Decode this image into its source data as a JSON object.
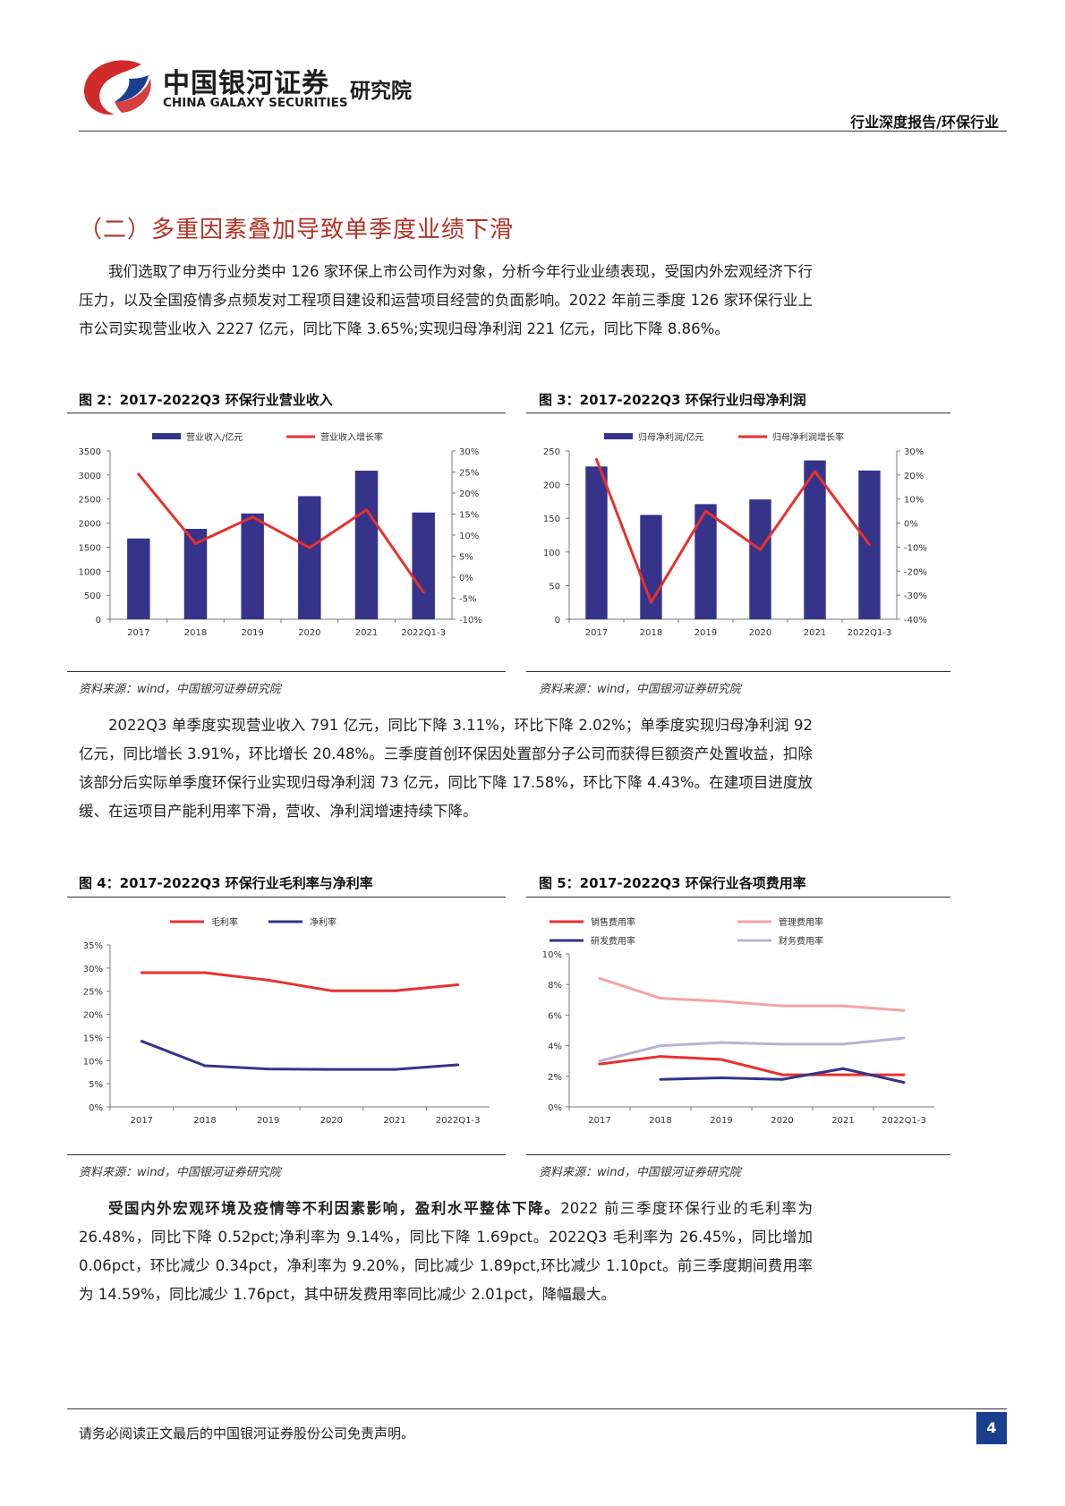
{
  "header": {
    "brand_cn": "中国银河证券",
    "brand_en": "CHINA GALAXY SECURITIES",
    "institute": "研究院",
    "report_type": "行业深度报告/环保行业",
    "colors": {
      "logo_red": "#d12a2a",
      "logo_blue": "#1b3f8f"
    }
  },
  "section_title": "（二）多重因素叠加导致单季度业绩下滑",
  "paragraphs": {
    "p1": "我们选取了申万行业分类中 126 家环保上市公司作为对象，分析今年行业业绩表现，受国内外宏观经济下行压力，以及全国疫情多点频发对工程项目建设和运营项目经营的负面影响。2022 年前三季度 126 家环保行业上市公司实现营业收入 2227 亿元，同比下降 3.65%;实现归母净利润 221 亿元，同比下降 8.86%。",
    "p2": "2022Q3 单季度实现营业收入 791 亿元，同比下降 3.11%，环比下降 2.02%；单季度实现归母净利润 92 亿元，同比增长 3.91%，环比增长 20.48%。三季度首创环保因处置部分子公司而获得巨额资产处置收益，扣除该部分后实际单季度环保行业实现归母净利润 73 亿元，同比下降 17.58%，环比下降 4.43%。在建项目进度放缓、在运项目产能利用率下滑，营收、净利润增速持续下降。",
    "p3_bold": "受国内外宏观环境及疫情等不利因素影响，盈利水平整体下降。",
    "p3_rest": "2022 前三季度环保行业的毛利率为 26.48%，同比下降 0.52pct;净利率为 9.14%，同比下降 1.69pct。2022Q3 毛利率为 26.45%，同比增加 0.06pct，环比减少 0.34pct，净利率为 9.20%，同比减少 1.89pct,环比减少 1.10pct。前三季度期间费用率为 14.59%，同比减少 1.76pct，其中研发费用率同比减少 2.01pct，降幅最大。"
  },
  "figures": {
    "fig2": {
      "title": "图 2：2017-2022Q3 环保行业营业收入",
      "source": "资料来源：wind，中国银河证券研究院"
    },
    "fig3": {
      "title": "图 3：2017-2022Q3 环保行业归母净利润",
      "source": "资料来源：wind，中国银河证券研究院"
    },
    "fig4": {
      "title": "图 4：2017-2022Q3 环保行业毛利率与净利率",
      "source": "资料来源：wind，中国银河证券研究院"
    },
    "fig5": {
      "title": "图 5：2017-2022Q3 环保行业各项费用率",
      "source": "资料来源：wind，中国银河证券研究院"
    }
  },
  "chart_data": [
    {
      "id": "fig2",
      "type": "bar+line",
      "categories": [
        "2017",
        "2018",
        "2019",
        "2020",
        "2021",
        "2022Q1-3"
      ],
      "series": [
        {
          "name": "营业收入/亿元",
          "type": "bar",
          "axis": "left",
          "color": "#35338a",
          "values": [
            1680,
            1880,
            2200,
            2560,
            3090,
            2220
          ]
        },
        {
          "name": "营业收入增长率",
          "type": "line",
          "axis": "right",
          "color": "#e8302d",
          "values": [
            24.5,
            8,
            14.3,
            7,
            16,
            -3.6
          ]
        }
      ],
      "y_left": {
        "min": 0,
        "max": 3500,
        "step": 500,
        "ticks": [
          "0",
          "500",
          "1000",
          "1500",
          "2000",
          "2500",
          "3000",
          "3500"
        ]
      },
      "y_right": {
        "min": -10,
        "max": 30,
        "step": 5,
        "ticks": [
          "-10%",
          "-5%",
          "0%",
          "5%",
          "10%",
          "15%",
          "20%",
          "25%",
          "30%"
        ]
      },
      "legend": "top",
      "grid": false
    },
    {
      "id": "fig3",
      "type": "bar+line",
      "categories": [
        "2017",
        "2018",
        "2019",
        "2020",
        "2021",
        "2022Q1-3"
      ],
      "series": [
        {
          "name": "归母净利润/亿元",
          "type": "bar",
          "axis": "left",
          "color": "#35338a",
          "values": [
            227,
            155,
            171,
            178,
            236,
            221
          ]
        },
        {
          "name": "归母净利润增长率",
          "type": "line",
          "axis": "right",
          "color": "#e8302d",
          "values": [
            26.5,
            -33,
            5,
            -11,
            21.5,
            -9
          ]
        }
      ],
      "y_left": {
        "min": 0,
        "max": 250,
        "step": 50,
        "ticks": [
          "0",
          "50",
          "100",
          "150",
          "200",
          "250"
        ]
      },
      "y_right": {
        "min": -40,
        "max": 30,
        "step": 10,
        "ticks": [
          "-40%",
          "-30%",
          "-20%",
          "-10%",
          "0%",
          "10%",
          "20%",
          "30%"
        ]
      },
      "legend": "top",
      "grid": false
    },
    {
      "id": "fig4",
      "type": "line",
      "categories": [
        "2017",
        "2018",
        "2019",
        "2020",
        "2021",
        "2022Q1-3"
      ],
      "series": [
        {
          "name": "毛利率",
          "color": "#e8302d",
          "values": [
            29,
            29,
            27.4,
            25.1,
            25.1,
            26.4
          ]
        },
        {
          "name": "净利率",
          "color": "#35338a",
          "values": [
            14.2,
            8.9,
            8.2,
            8.1,
            8.1,
            9.1
          ]
        }
      ],
      "y": {
        "min": 0,
        "max": 35,
        "step": 5,
        "ticks": [
          "0%",
          "5%",
          "10%",
          "15%",
          "20%",
          "25%",
          "30%",
          "35%"
        ]
      },
      "legend": "top",
      "grid": false
    },
    {
      "id": "fig5",
      "type": "line",
      "categories": [
        "2017",
        "2018",
        "2019",
        "2020",
        "2021",
        "2022Q1-3"
      ],
      "series": [
        {
          "name": "销售费用率",
          "color": "#e8302d",
          "values": [
            2.8,
            3.3,
            3.1,
            2.1,
            2.1,
            2.1
          ]
        },
        {
          "name": "管理费用率",
          "color": "#f5a3a3",
          "values": [
            8.4,
            7.1,
            6.9,
            6.6,
            6.6,
            6.3
          ]
        },
        {
          "name": "研发费用率",
          "color": "#35338a",
          "values": [
            null,
            1.8,
            1.9,
            1.8,
            2.5,
            1.6
          ]
        },
        {
          "name": "财务费用率",
          "color": "#b7b3d6",
          "values": [
            3.0,
            4.0,
            4.2,
            4.1,
            4.1,
            4.5
          ]
        }
      ],
      "y": {
        "min": 0,
        "max": 10,
        "step": 2,
        "ticks": [
          "0%",
          "2%",
          "4%",
          "6%",
          "8%",
          "10%"
        ]
      },
      "legend": "top",
      "grid": false
    }
  ],
  "footer": {
    "disclaimer": "请务必阅读正文最后的中国银河证券股份公司免责声明。",
    "page_number": "4"
  }
}
